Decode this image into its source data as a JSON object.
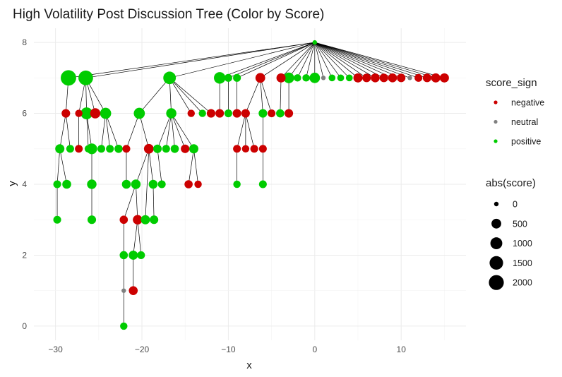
{
  "chart_data": {
    "type": "scatter",
    "title": "High Volatility Post Discussion Tree (Color by Score)",
    "xlabel": "x",
    "ylabel": "y",
    "xlim": [
      -32.5,
      17.5
    ],
    "ylim": [
      -0.4,
      8.4
    ],
    "x_ticks": [
      -30,
      -20,
      -10,
      0,
      10
    ],
    "y_ticks": [
      0,
      2,
      4,
      6,
      8
    ],
    "x_tick_labels": [
      "−30",
      "−20",
      "−10",
      "0",
      "10"
    ],
    "y_tick_labels": [
      "0",
      "2",
      "4",
      "6",
      "8"
    ],
    "grid": true,
    "colors": {
      "negative": "#cc0000",
      "neutral": "#808080",
      "positive": "#00cc00"
    },
    "legend_color": {
      "title": "score_sign",
      "items": [
        {
          "label": "negative",
          "key": "negative"
        },
        {
          "label": "neutral",
          "key": "neutral"
        },
        {
          "label": "positive",
          "key": "positive"
        }
      ]
    },
    "legend_size": {
      "title": "abs(score)",
      "items": [
        {
          "label": "0",
          "value": 0
        },
        {
          "label": "500",
          "value": 500
        },
        {
          "label": "1000",
          "value": 1000
        },
        {
          "label": "1500",
          "value": 1500
        },
        {
          "label": "2000",
          "value": 2000
        }
      ]
    },
    "nodes": [
      {
        "id": "root",
        "x": 0,
        "y": 8,
        "sign": "positive",
        "abs": 0
      },
      {
        "id": "a1",
        "x": -28.5,
        "y": 7,
        "sign": "positive",
        "abs": 2200,
        "parent": "root"
      },
      {
        "id": "a2",
        "x": -26.5,
        "y": 7,
        "sign": "positive",
        "abs": 1900,
        "parent": "root"
      },
      {
        "id": "a3",
        "x": -16.8,
        "y": 7,
        "sign": "positive",
        "abs": 1200,
        "parent": "root"
      },
      {
        "id": "a4",
        "x": -11,
        "y": 7,
        "sign": "positive",
        "abs": 900,
        "parent": "root"
      },
      {
        "id": "a5",
        "x": -10,
        "y": 7,
        "sign": "positive",
        "abs": 200,
        "parent": "root"
      },
      {
        "id": "a6",
        "x": -9,
        "y": 7,
        "sign": "positive",
        "abs": 200,
        "parent": "root"
      },
      {
        "id": "a7",
        "x": -6.3,
        "y": 7,
        "sign": "negative",
        "abs": 500,
        "parent": "root"
      },
      {
        "id": "a8",
        "x": -3.9,
        "y": 7,
        "sign": "negative",
        "abs": 400,
        "parent": "root"
      },
      {
        "id": "a9",
        "x": -3,
        "y": 7,
        "sign": "positive",
        "abs": 700,
        "parent": "root"
      },
      {
        "id": "a10",
        "x": -2,
        "y": 7,
        "sign": "positive",
        "abs": 150,
        "parent": "root"
      },
      {
        "id": "a11",
        "x": -1,
        "y": 7,
        "sign": "positive",
        "abs": 150,
        "parent": "root"
      },
      {
        "id": "a12",
        "x": 0,
        "y": 7,
        "sign": "positive",
        "abs": 650,
        "parent": "root"
      },
      {
        "id": "a13",
        "x": 1,
        "y": 7,
        "sign": "neutral",
        "abs": 0,
        "parent": "root"
      },
      {
        "id": "a14",
        "x": 2,
        "y": 7,
        "sign": "positive",
        "abs": 100,
        "parent": "root"
      },
      {
        "id": "a15",
        "x": 3,
        "y": 7,
        "sign": "positive",
        "abs": 100,
        "parent": "root"
      },
      {
        "id": "a16",
        "x": 4,
        "y": 7,
        "sign": "positive",
        "abs": 100,
        "parent": "root"
      },
      {
        "id": "a17",
        "x": 5,
        "y": 7,
        "sign": "negative",
        "abs": 400,
        "parent": "root"
      },
      {
        "id": "a18",
        "x": 6,
        "y": 7,
        "sign": "negative",
        "abs": 300,
        "parent": "root"
      },
      {
        "id": "a19",
        "x": 7,
        "y": 7,
        "sign": "negative",
        "abs": 350,
        "parent": "root"
      },
      {
        "id": "a20",
        "x": 8,
        "y": 7,
        "sign": "negative",
        "abs": 300,
        "parent": "root"
      },
      {
        "id": "a21",
        "x": 9,
        "y": 7,
        "sign": "negative",
        "abs": 350,
        "parent": "root"
      },
      {
        "id": "a22",
        "x": 10,
        "y": 7,
        "sign": "negative",
        "abs": 300,
        "parent": "root"
      },
      {
        "id": "a23",
        "x": 11,
        "y": 7,
        "sign": "neutral",
        "abs": 0,
        "parent": "root"
      },
      {
        "id": "a24",
        "x": 12,
        "y": 7,
        "sign": "negative",
        "abs": 200,
        "parent": "root"
      },
      {
        "id": "a25",
        "x": 13,
        "y": 7,
        "sign": "negative",
        "abs": 300,
        "parent": "root"
      },
      {
        "id": "a26",
        "x": 14,
        "y": 7,
        "sign": "negative",
        "abs": 400,
        "parent": "root"
      },
      {
        "id": "a27",
        "x": 15,
        "y": 7,
        "sign": "negative",
        "abs": 400,
        "parent": "root"
      },
      {
        "id": "b1",
        "x": -28.8,
        "y": 6,
        "sign": "negative",
        "abs": 300,
        "parent": "a1"
      },
      {
        "id": "b2",
        "x": -27.3,
        "y": 6,
        "sign": "negative",
        "abs": 150,
        "parent": "a2"
      },
      {
        "id": "b3",
        "x": -26.4,
        "y": 6,
        "sign": "positive",
        "abs": 1000,
        "parent": "a2"
      },
      {
        "id": "b4",
        "x": -25.4,
        "y": 6,
        "sign": "negative",
        "abs": 600,
        "parent": "a2"
      },
      {
        "id": "b5",
        "x": -24.2,
        "y": 6,
        "sign": "positive",
        "abs": 800,
        "parent": "a2"
      },
      {
        "id": "b6",
        "x": -20.3,
        "y": 6,
        "sign": "positive",
        "abs": 800,
        "parent": "a3"
      },
      {
        "id": "b7",
        "x": -16.6,
        "y": 6,
        "sign": "positive",
        "abs": 600,
        "parent": "a3"
      },
      {
        "id": "b8",
        "x": -14.3,
        "y": 6,
        "sign": "negative",
        "abs": 150,
        "parent": "a3"
      },
      {
        "id": "b9",
        "x": -13,
        "y": 6,
        "sign": "positive",
        "abs": 150,
        "parent": "a3"
      },
      {
        "id": "b10",
        "x": -12,
        "y": 6,
        "sign": "negative",
        "abs": 300,
        "parent": "a3"
      },
      {
        "id": "b11",
        "x": -11,
        "y": 6,
        "sign": "negative",
        "abs": 300,
        "parent": "a4"
      },
      {
        "id": "b12",
        "x": -9,
        "y": 6,
        "sign": "negative",
        "abs": 300,
        "parent": "a6"
      },
      {
        "id": "b13",
        "x": -8,
        "y": 6,
        "sign": "negative",
        "abs": 300,
        "parent": "a7"
      },
      {
        "id": "b14",
        "x": -6,
        "y": 6,
        "sign": "positive",
        "abs": 300,
        "parent": "a7"
      },
      {
        "id": "b15",
        "x": -5,
        "y": 6,
        "sign": "negative",
        "abs": 200,
        "parent": "a7"
      },
      {
        "id": "b16",
        "x": -4,
        "y": 6,
        "sign": "positive",
        "abs": 250,
        "parent": "a8"
      },
      {
        "id": "b17",
        "x": -3,
        "y": 6,
        "sign": "negative",
        "abs": 300,
        "parent": "a9"
      },
      {
        "id": "b18",
        "x": -10,
        "y": 6,
        "sign": "positive",
        "abs": 200,
        "parent": "a5"
      },
      {
        "id": "c1",
        "x": -29.5,
        "y": 5,
        "sign": "positive",
        "abs": 400,
        "parent": "b1"
      },
      {
        "id": "c2",
        "x": -28.3,
        "y": 5,
        "sign": "positive",
        "abs": 200,
        "parent": "b1"
      },
      {
        "id": "c3",
        "x": -27.3,
        "y": 5,
        "sign": "negative",
        "abs": 200,
        "parent": "b2"
      },
      {
        "id": "c4",
        "x": -26.2,
        "y": 5,
        "sign": "positive",
        "abs": 150,
        "parent": "b3"
      },
      {
        "id": "c5",
        "x": -25.8,
        "y": 5,
        "sign": "positive",
        "abs": 700,
        "parent": "b3"
      },
      {
        "id": "c6",
        "x": -24.7,
        "y": 5,
        "sign": "positive",
        "abs": 200,
        "parent": "b5"
      },
      {
        "id": "c7",
        "x": -23.7,
        "y": 5,
        "sign": "positive",
        "abs": 200,
        "parent": "b5"
      },
      {
        "id": "c8",
        "x": -22.7,
        "y": 5,
        "sign": "positive",
        "abs": 250,
        "parent": "b5"
      },
      {
        "id": "c9",
        "x": -21.8,
        "y": 5,
        "sign": "negative",
        "abs": 200,
        "parent": "b6"
      },
      {
        "id": "c10",
        "x": -19.2,
        "y": 5,
        "sign": "negative",
        "abs": 500,
        "parent": "b6"
      },
      {
        "id": "c11",
        "x": -18.2,
        "y": 5,
        "sign": "positive",
        "abs": 300,
        "parent": "b7"
      },
      {
        "id": "c12",
        "x": -17.2,
        "y": 5,
        "sign": "positive",
        "abs": 200,
        "parent": "b7"
      },
      {
        "id": "c13",
        "x": -16.2,
        "y": 5,
        "sign": "positive",
        "abs": 250,
        "parent": "b7"
      },
      {
        "id": "c14",
        "x": -15,
        "y": 5,
        "sign": "negative",
        "abs": 300,
        "parent": "b7"
      },
      {
        "id": "c15",
        "x": -14,
        "y": 5,
        "sign": "positive",
        "abs": 400,
        "parent": "b7"
      },
      {
        "id": "c16",
        "x": -9,
        "y": 5,
        "sign": "negative",
        "abs": 200,
        "parent": "b13"
      },
      {
        "id": "c17",
        "x": -8,
        "y": 5,
        "sign": "negative",
        "abs": 150,
        "parent": "b13"
      },
      {
        "id": "c18",
        "x": -7,
        "y": 5,
        "sign": "negative",
        "abs": 200,
        "parent": "b13"
      },
      {
        "id": "c19",
        "x": -6,
        "y": 5,
        "sign": "negative",
        "abs": 200,
        "parent": "b14"
      },
      {
        "id": "d1",
        "x": -29.8,
        "y": 4,
        "sign": "positive",
        "abs": 200,
        "parent": "c1"
      },
      {
        "id": "d2",
        "x": -28.7,
        "y": 4,
        "sign": "positive",
        "abs": 350,
        "parent": "c1"
      },
      {
        "id": "d3",
        "x": -25.8,
        "y": 4,
        "sign": "positive",
        "abs": 450,
        "parent": "c5"
      },
      {
        "id": "d4",
        "x": -21.8,
        "y": 4,
        "sign": "positive",
        "abs": 350,
        "parent": "c9"
      },
      {
        "id": "d5",
        "x": -20.7,
        "y": 4,
        "sign": "positive",
        "abs": 450,
        "parent": "c10"
      },
      {
        "id": "d6",
        "x": -18.7,
        "y": 4,
        "sign": "positive",
        "abs": 350,
        "parent": "c10"
      },
      {
        "id": "d7",
        "x": -17.7,
        "y": 4,
        "sign": "positive",
        "abs": 200,
        "parent": "c11"
      },
      {
        "id": "d8",
        "x": -14.6,
        "y": 4,
        "sign": "negative",
        "abs": 250,
        "parent": "c15"
      },
      {
        "id": "d9",
        "x": -13.5,
        "y": 4,
        "sign": "negative",
        "abs": 150,
        "parent": "c15"
      },
      {
        "id": "d10",
        "x": -9,
        "y": 4,
        "sign": "positive",
        "abs": 150,
        "parent": "c16"
      },
      {
        "id": "d11",
        "x": -6,
        "y": 4,
        "sign": "positive",
        "abs": 200,
        "parent": "c19"
      },
      {
        "id": "e1",
        "x": -29.8,
        "y": 3,
        "sign": "positive",
        "abs": 200,
        "parent": "d1"
      },
      {
        "id": "e2",
        "x": -25.8,
        "y": 3,
        "sign": "positive",
        "abs": 300,
        "parent": "d3"
      },
      {
        "id": "e3",
        "x": -22.1,
        "y": 3,
        "sign": "negative",
        "abs": 250,
        "parent": "d5"
      },
      {
        "id": "e4",
        "x": -20.5,
        "y": 3,
        "sign": "negative",
        "abs": 450,
        "parent": "d5"
      },
      {
        "id": "e5",
        "x": -19.6,
        "y": 3,
        "sign": "positive",
        "abs": 400,
        "parent": "c10"
      },
      {
        "id": "e6",
        "x": -18.6,
        "y": 3,
        "sign": "positive",
        "abs": 300,
        "parent": "d6"
      },
      {
        "id": "f1",
        "x": -22.1,
        "y": 2,
        "sign": "positive",
        "abs": 250,
        "parent": "e3"
      },
      {
        "id": "f2",
        "x": -21,
        "y": 2,
        "sign": "positive",
        "abs": 400,
        "parent": "e4"
      },
      {
        "id": "f3",
        "x": -20.1,
        "y": 2,
        "sign": "positive",
        "abs": 200,
        "parent": "e4"
      },
      {
        "id": "g1",
        "x": -22.1,
        "y": 1,
        "sign": "neutral",
        "abs": 0,
        "parent": "f1"
      },
      {
        "id": "g2",
        "x": -21,
        "y": 1,
        "sign": "negative",
        "abs": 350,
        "parent": "f2"
      },
      {
        "id": "h1",
        "x": -22.1,
        "y": 0,
        "sign": "positive",
        "abs": 150,
        "parent": "g1"
      }
    ]
  }
}
